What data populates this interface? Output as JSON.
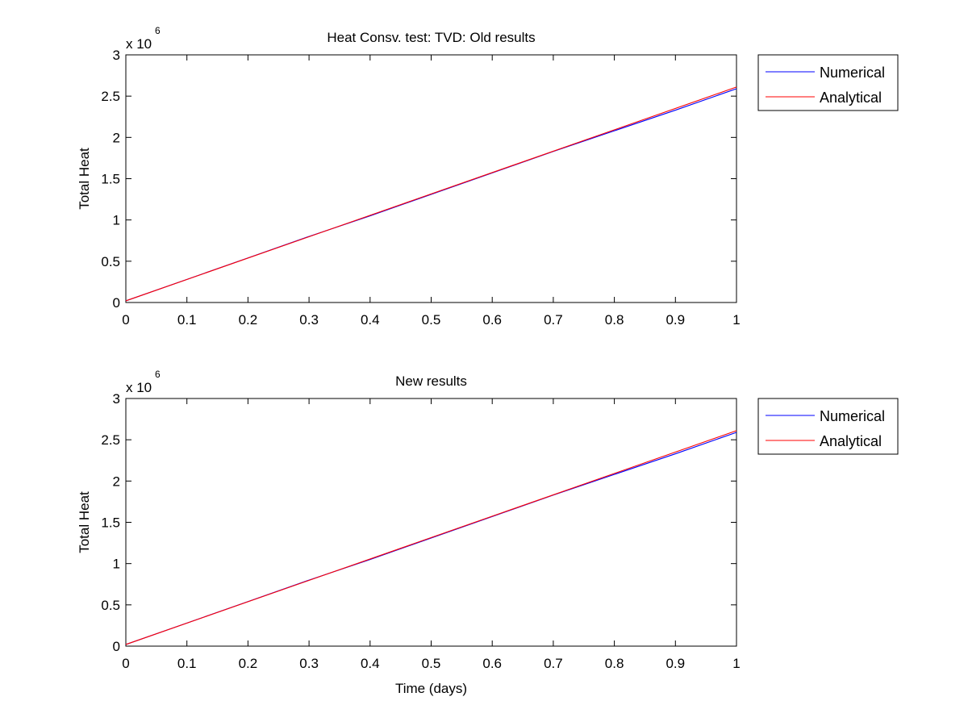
{
  "chart_data": [
    {
      "type": "line",
      "title": "Heat Consv. test: TVD: Old results",
      "xlabel": "",
      "ylabel": "Total Heat",
      "y_multiplier": "x 10",
      "y_exponent": "6",
      "xlim": [
        0,
        1
      ],
      "ylim": [
        0,
        3
      ],
      "x_ticks": [
        "0",
        "0.1",
        "0.2",
        "0.3",
        "0.4",
        "0.5",
        "0.6",
        "0.7",
        "0.8",
        "0.9",
        "1"
      ],
      "y_ticks": [
        "0",
        "0.5",
        "1",
        "1.5",
        "2",
        "2.5",
        "3"
      ],
      "grid": false,
      "legend_position": "outside-right-top",
      "series": [
        {
          "name": "Numerical",
          "color": "#0000ff",
          "x": [
            0,
            0.1,
            0.2,
            0.3,
            0.4,
            0.5,
            0.6,
            0.7,
            0.8,
            0.9,
            1
          ],
          "y": [
            0.02,
            0.28,
            0.54,
            0.8,
            1.05,
            1.31,
            1.57,
            1.83,
            2.08,
            2.33,
            2.59
          ]
        },
        {
          "name": "Analytical",
          "color": "#ff0000",
          "x": [
            0,
            1
          ],
          "y": [
            0.02,
            2.61
          ]
        }
      ]
    },
    {
      "type": "line",
      "title": "New results",
      "xlabel": "Time (days)",
      "ylabel": "Total Heat",
      "y_multiplier": "x 10",
      "y_exponent": "6",
      "xlim": [
        0,
        1
      ],
      "ylim": [
        0,
        3
      ],
      "x_ticks": [
        "0",
        "0.1",
        "0.2",
        "0.3",
        "0.4",
        "0.5",
        "0.6",
        "0.7",
        "0.8",
        "0.9",
        "1"
      ],
      "y_ticks": [
        "0",
        "0.5",
        "1",
        "1.5",
        "2",
        "2.5",
        "3"
      ],
      "grid": false,
      "legend_position": "outside-right-top",
      "series": [
        {
          "name": "Numerical",
          "color": "#0000ff",
          "x": [
            0,
            0.1,
            0.2,
            0.3,
            0.4,
            0.5,
            0.6,
            0.7,
            0.8,
            0.9,
            1
          ],
          "y": [
            0.02,
            0.28,
            0.54,
            0.8,
            1.05,
            1.31,
            1.57,
            1.83,
            2.08,
            2.33,
            2.59
          ]
        },
        {
          "name": "Analytical",
          "color": "#ff0000",
          "x": [
            0,
            1
          ],
          "y": [
            0.02,
            2.61
          ]
        }
      ]
    }
  ]
}
